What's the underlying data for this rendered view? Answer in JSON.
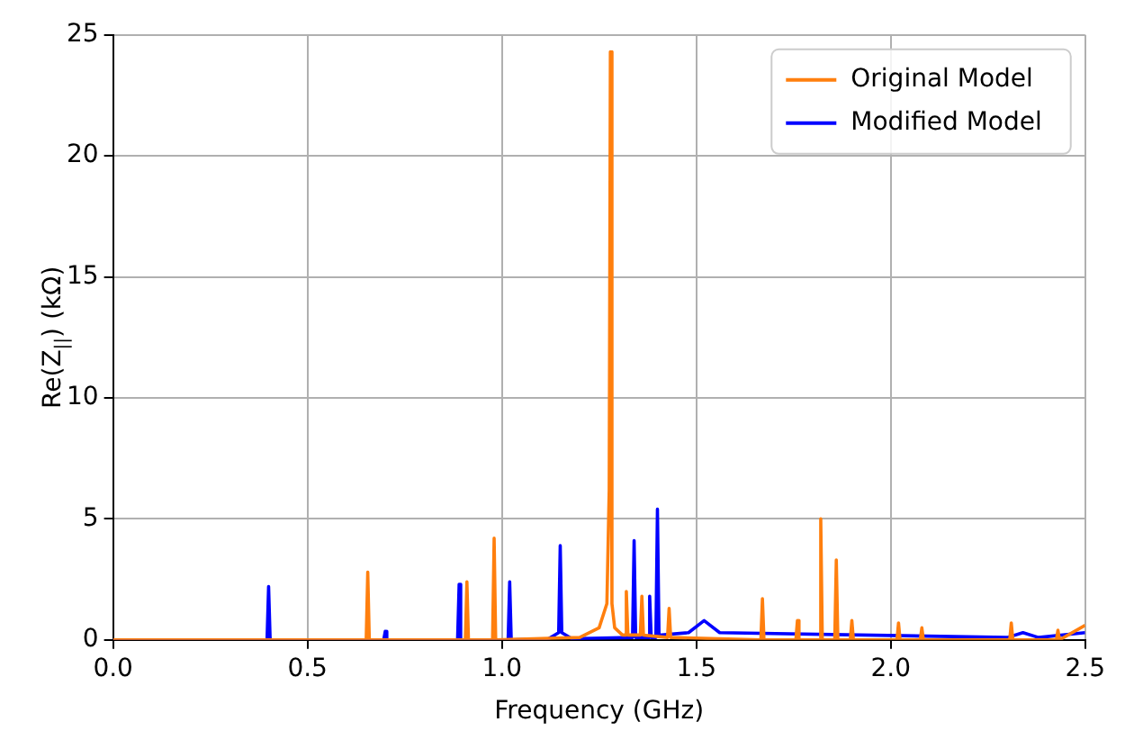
{
  "chart_data": {
    "type": "line",
    "xlabel": "Frequency (GHz)",
    "ylabel": "Re(Z$_{||}$) (kΩ)",
    "xlim": [
      0,
      2.5
    ],
    "xticks": [
      {
        "value": 0,
        "label": "0.0"
      },
      0.5,
      {
        "value": 1,
        "label": "1.0"
      },
      1.5,
      {
        "value": 2,
        "label": "2.0"
      },
      2.5
    ],
    "ylim": [
      0,
      25
    ],
    "yticks": [
      0,
      5,
      10,
      15,
      20,
      25
    ],
    "grid": true,
    "legend": "top right",
    "marker": "none",
    "line_style": "solid",
    "series": [
      {
        "name": "Original Model",
        "color": "#ff7f0e",
        "x": [
          0,
          0.651,
          0.655,
          0.659,
          0.906,
          0.91,
          0.914,
          0.976,
          0.98,
          0.984,
          1.2,
          1.25,
          1.27,
          1.276,
          1.279,
          1.283,
          1.29,
          1.31,
          1.316,
          1.32,
          1.324,
          1.356,
          1.36,
          1.364,
          1.426,
          1.43,
          1.434,
          1.666,
          1.67,
          1.674,
          1.756,
          1.76,
          1.764,
          1.816,
          1.82,
          1.824,
          1.856,
          1.86,
          1.864,
          1.896,
          1.9,
          1.904,
          2.016,
          2.02,
          2.024,
          2.076,
          2.08,
          2.084,
          2.306,
          2.31,
          2.314,
          2.426,
          2.43,
          2.434,
          2.5
        ],
        "values": [
          0,
          0,
          2.8,
          0,
          0,
          2.4,
          0,
          0,
          4.2,
          0,
          0.1,
          0.5,
          1.5,
          6.2,
          24.3,
          1.5,
          0.5,
          0.2,
          0.2,
          2.0,
          0.2,
          0.2,
          1.8,
          0.2,
          0.1,
          1.3,
          0.1,
          0,
          1.7,
          0,
          0,
          0.8,
          0,
          0,
          5.0,
          0,
          0,
          3.3,
          0,
          0,
          0.8,
          0,
          0,
          0.7,
          0,
          0,
          0.5,
          0,
          0,
          0.7,
          0,
          0,
          0.4,
          0,
          0.6
        ]
      },
      {
        "name": "Modified Model",
        "color": "#0000ff",
        "x": [
          0,
          0.396,
          0.4,
          0.404,
          0.696,
          0.7,
          0.704,
          0.886,
          0.89,
          0.894,
          1.016,
          1.02,
          1.024,
          1.12,
          1.146,
          1.15,
          1.154,
          1.18,
          1.336,
          1.34,
          1.344,
          1.376,
          1.38,
          1.384,
          1.396,
          1.4,
          1.404,
          1.48,
          1.52,
          1.56,
          2.3,
          2.34,
          2.38,
          2.5
        ],
        "values": [
          0,
          0,
          2.2,
          0,
          0,
          0.35,
          0,
          0,
          2.3,
          0,
          0,
          2.4,
          0,
          0.05,
          0.3,
          3.9,
          0.3,
          0.05,
          0.1,
          4.1,
          0.1,
          0.1,
          1.8,
          0.1,
          0.1,
          5.4,
          0.2,
          0.3,
          0.8,
          0.3,
          0.1,
          0.3,
          0.1,
          0.3
        ]
      }
    ]
  }
}
